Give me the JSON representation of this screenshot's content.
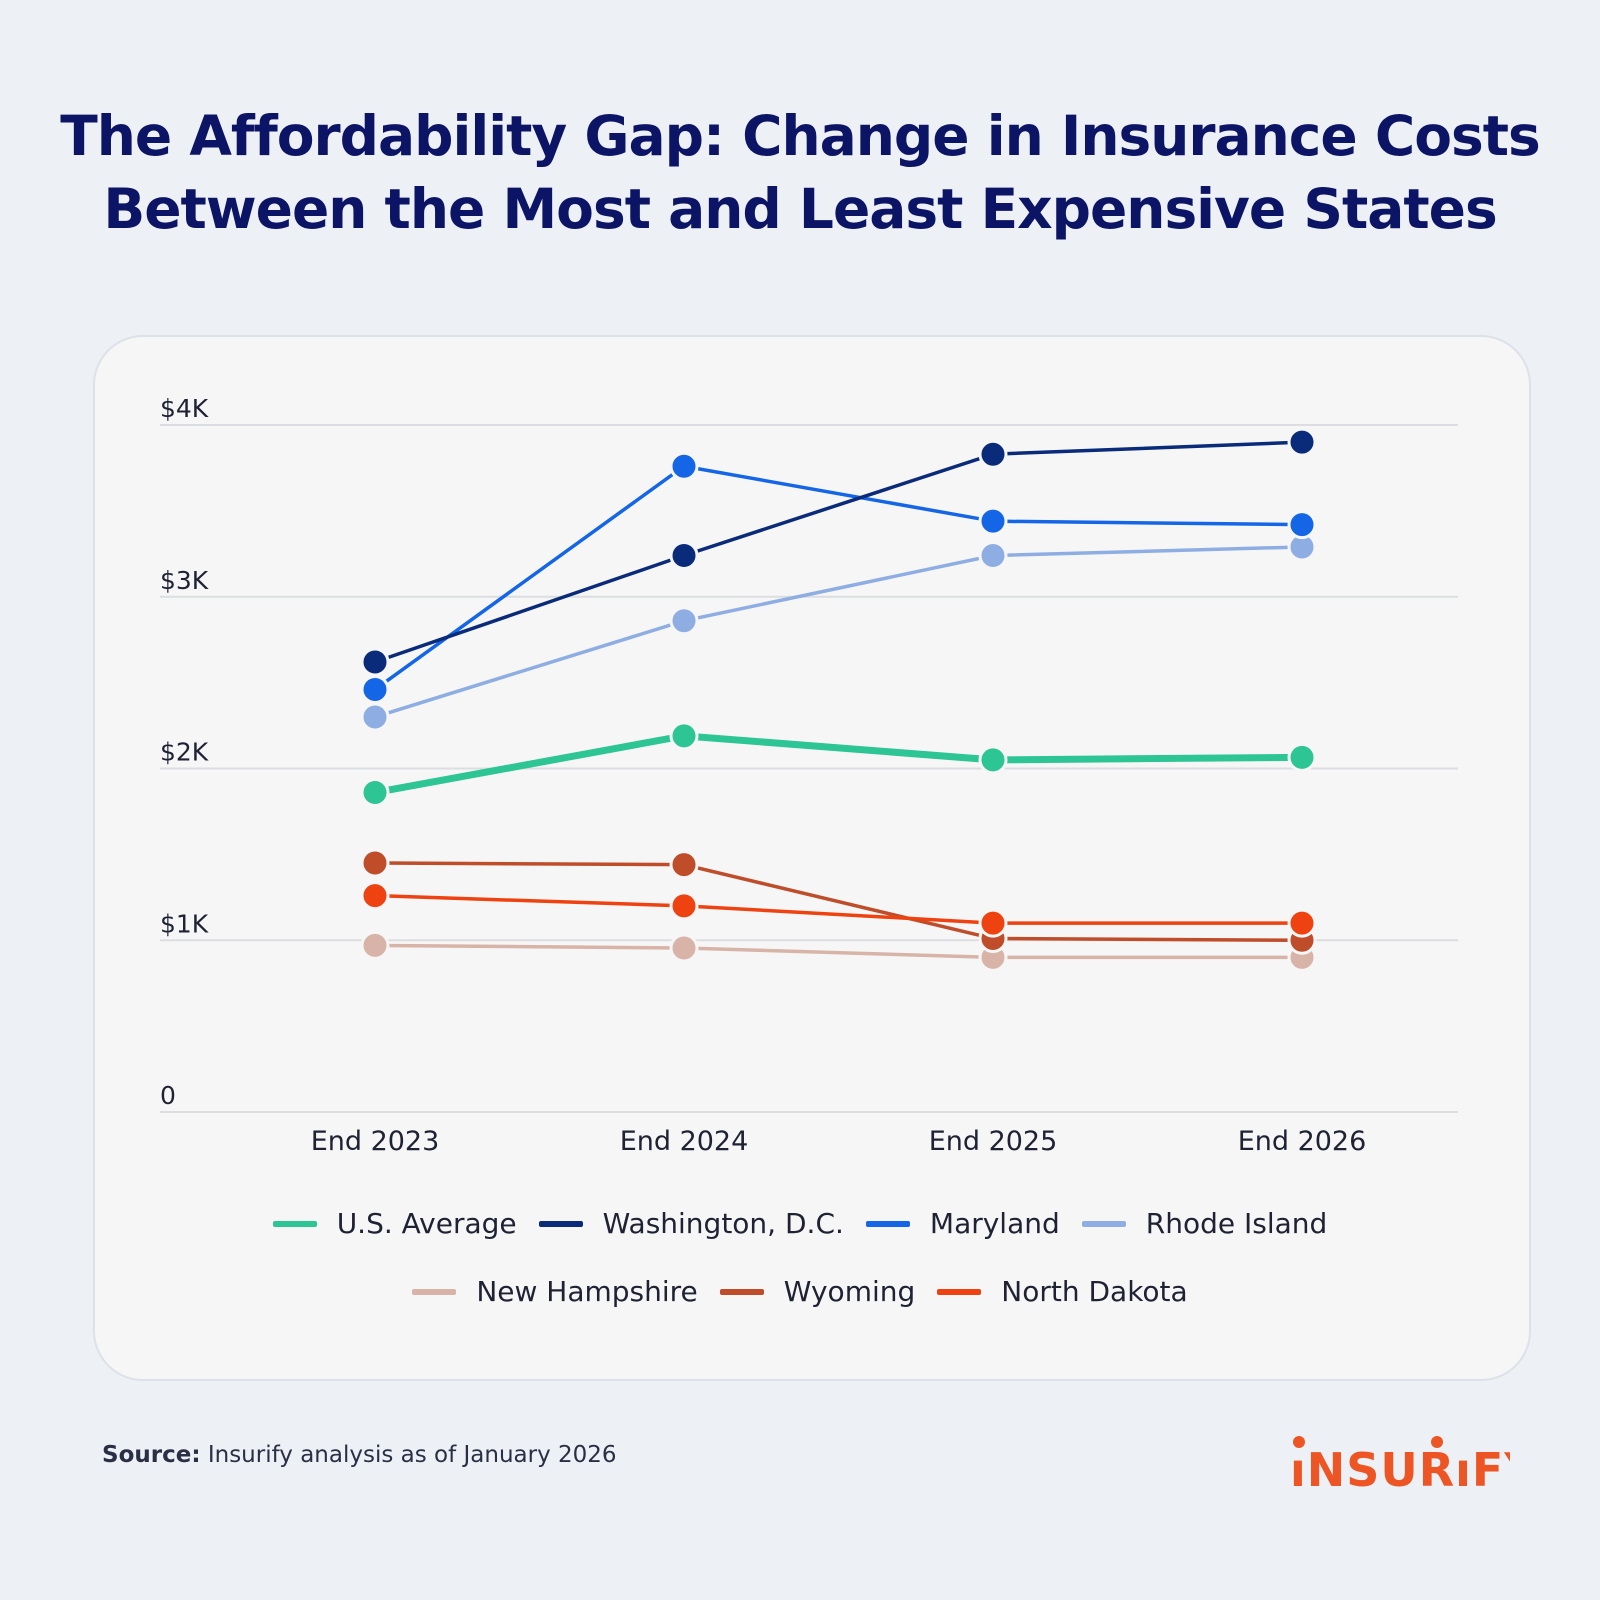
{
  "title_lines": [
    "The Affordability Gap: Change in Insurance Costs",
    "Between the Most and Least Expensive States"
  ],
  "source": {
    "label": "Source:",
    "text": "Insurify analysis as of January 2026"
  },
  "logo": "INSURIFY",
  "chart_data": {
    "type": "line",
    "title": "The Affordability Gap: Change in Insurance Costs Between the Most and Least Expensive States",
    "categories": [
      "End 2023",
      "End 2024",
      "End 2025",
      "End 2026"
    ],
    "ylim": [
      0,
      4000
    ],
    "yticks": [
      0,
      1000,
      2000,
      3000,
      4000
    ],
    "ytick_labels": [
      "0",
      "$1K",
      "$2K",
      "$3K",
      "$4K"
    ],
    "grid": true,
    "legend_placement": "bottom",
    "series": [
      {
        "name": "U.S. Average",
        "color": "#2ec594",
        "values": [
          1860,
          2190,
          2050,
          2065
        ]
      },
      {
        "name": "Washington, D.C.",
        "color": "#0a2a7a",
        "values": [
          2620,
          3240,
          3830,
          3900
        ]
      },
      {
        "name": "Maryland",
        "color": "#1466e6",
        "values": [
          2460,
          3760,
          3440,
          3420
        ]
      },
      {
        "name": "Rhode Island",
        "color": "#8eaee3",
        "values": [
          2300,
          2860,
          3240,
          3290
        ]
      },
      {
        "name": "New Hampshire",
        "color": "#d8b3a8",
        "values": [
          970,
          955,
          900,
          900
        ]
      },
      {
        "name": "Wyoming",
        "color": "#bf4d2a",
        "values": [
          1450,
          1440,
          1010,
          1000
        ]
      },
      {
        "name": "North Dakota",
        "color": "#ee4310",
        "values": [
          1260,
          1200,
          1100,
          1100
        ]
      }
    ]
  }
}
